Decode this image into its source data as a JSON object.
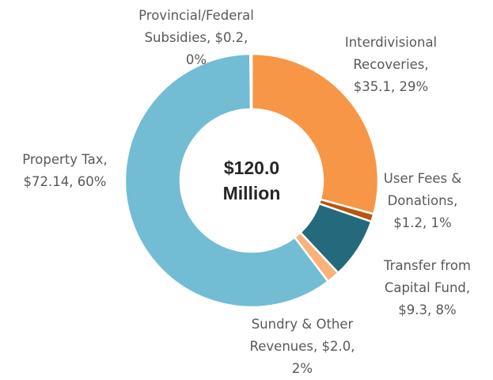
{
  "chart_data": {
    "type": "donut",
    "center_label": "$120.0 Million",
    "categories": [
      "Interdivisional Recoveries",
      "User Fees & Donations",
      "Transfer from Capital Fund",
      "Sundry & Other Revenues",
      "Property Tax",
      "Provincial/Federal Subsidies"
    ],
    "values": [
      35.1,
      1.2,
      9.3,
      2.0,
      72.14,
      0.2
    ],
    "value_labels": [
      "Interdivisional Recoveries, $35.1, 29%",
      "User Fees & Donations, $1.2, 1%",
      "Transfer from Capital Fund, $9.3, 8%",
      "Sundry & Other Revenues, $2.0, 2%",
      "Property Tax, $72.14, 60%",
      "Provincial/Federal Subsidies, $0.2, 0%"
    ],
    "colors": [
      "#f79646",
      "#b9550f",
      "#246a7c",
      "#fab27a",
      "#72bdd4",
      "#2f5f8a"
    ]
  }
}
